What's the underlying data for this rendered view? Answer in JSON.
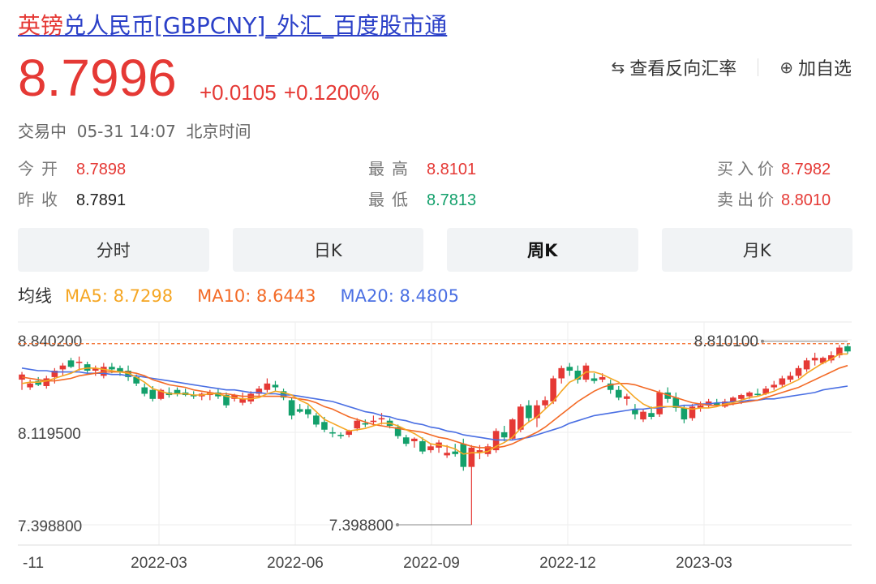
{
  "header": {
    "title_highlight": "英镑",
    "title_rest": "兑人民币[GBPCNY]_外汇_百度股市通",
    "price": "8.7996",
    "change": "+0.0105 +0.1200%",
    "reverse_label": "查看反向汇率",
    "add_label": "加自选",
    "status": "交易中  05-31 14:07  北京时间"
  },
  "quotes": {
    "open_label": "今开",
    "open_value": "8.7898",
    "prev_label": "昨收",
    "prev_value": "8.7891",
    "high_label": "最高",
    "high_value": "8.8101",
    "low_label": "最低",
    "low_value": "8.7813",
    "bid_label": "买入价",
    "bid_value": "8.7982",
    "ask_label": "卖出价",
    "ask_value": "8.8010"
  },
  "tabs": [
    "分时",
    "日K",
    "周K",
    "月K"
  ],
  "active_tab": "周K",
  "ma": {
    "label": "均线",
    "ma5": "MA5: 8.7298",
    "ma10": "MA10: 8.6443",
    "ma20": "MA20: 8.4805"
  },
  "colors": {
    "up": "#e53935",
    "down": "#13a06b",
    "ma5": "#f5a623",
    "ma10": "#f36a26",
    "ma20": "#4a6fe3",
    "link": "#2b40c8"
  },
  "icons": {
    "reverse": "swap-arrows-icon",
    "add": "circled-plus-icon"
  },
  "chart_data": {
    "type": "candlestick",
    "y_ticks": [
      "8.840200",
      "8.119500",
      "7.398800"
    ],
    "x_ticks": [
      "-11",
      "2022-03",
      "2022-06",
      "2022-09",
      "2022-12",
      "2023-03"
    ],
    "max_label": "8.810100",
    "min_label": "7.398800",
    "ylim": [
      7.3988,
      8.8402
    ],
    "max_value": 8.8101,
    "min_value": 7.3988,
    "candles": [
      [
        8.53,
        8.59,
        8.45,
        8.57
      ],
      [
        8.47,
        8.53,
        8.45,
        8.5
      ],
      [
        8.52,
        8.55,
        8.48,
        8.49
      ],
      [
        8.48,
        8.56,
        8.46,
        8.54
      ],
      [
        8.55,
        8.62,
        8.5,
        8.6
      ],
      [
        8.61,
        8.66,
        8.56,
        8.64
      ],
      [
        8.68,
        8.7,
        8.62,
        8.63
      ],
      [
        8.66,
        8.71,
        8.6,
        8.67
      ],
      [
        8.65,
        8.67,
        8.58,
        8.6
      ],
      [
        8.6,
        8.64,
        8.56,
        8.62
      ],
      [
        8.56,
        8.66,
        8.54,
        8.63
      ],
      [
        8.63,
        8.66,
        8.58,
        8.61
      ],
      [
        8.62,
        8.64,
        8.56,
        8.59
      ],
      [
        8.6,
        8.64,
        8.52,
        8.55
      ],
      [
        8.55,
        8.57,
        8.48,
        8.5
      ],
      [
        8.47,
        8.5,
        8.4,
        8.42
      ],
      [
        8.45,
        8.48,
        8.36,
        8.38
      ],
      [
        8.38,
        8.46,
        8.37,
        8.45
      ],
      [
        8.43,
        8.47,
        8.39,
        8.41
      ],
      [
        8.45,
        8.47,
        8.4,
        8.42
      ],
      [
        8.43,
        8.46,
        8.4,
        8.41
      ],
      [
        8.41,
        8.44,
        8.38,
        8.4
      ],
      [
        8.4,
        8.43,
        8.37,
        8.42
      ],
      [
        8.41,
        8.45,
        8.37,
        8.43
      ],
      [
        8.43,
        8.46,
        8.38,
        8.4
      ],
      [
        8.41,
        8.43,
        8.31,
        8.33
      ],
      [
        8.38,
        8.42,
        8.36,
        8.41
      ],
      [
        8.35,
        8.43,
        8.33,
        8.38
      ],
      [
        8.36,
        8.44,
        8.34,
        8.42
      ],
      [
        8.42,
        8.48,
        8.4,
        8.46
      ],
      [
        8.45,
        8.54,
        8.43,
        8.5
      ],
      [
        8.49,
        8.52,
        8.44,
        8.47
      ],
      [
        8.44,
        8.46,
        8.37,
        8.39
      ],
      [
        8.37,
        8.39,
        8.22,
        8.25
      ],
      [
        8.3,
        8.34,
        8.27,
        8.28
      ],
      [
        8.3,
        8.33,
        8.23,
        8.26
      ],
      [
        8.25,
        8.27,
        8.16,
        8.18
      ],
      [
        8.2,
        8.24,
        8.12,
        8.14
      ],
      [
        8.12,
        8.16,
        8.08,
        8.11
      ],
      [
        8.1,
        8.12,
        8.07,
        8.09
      ],
      [
        8.1,
        8.14,
        8.08,
        8.13
      ],
      [
        8.15,
        8.23,
        8.13,
        8.21
      ],
      [
        8.19,
        8.22,
        8.16,
        8.18
      ],
      [
        8.2,
        8.25,
        8.17,
        8.21
      ],
      [
        8.22,
        8.27,
        8.18,
        8.23
      ],
      [
        8.21,
        8.23,
        8.15,
        8.17
      ],
      [
        8.16,
        8.18,
        8.07,
        8.09
      ],
      [
        8.08,
        8.1,
        8.01,
        8.03
      ],
      [
        8.05,
        8.08,
        8.0,
        8.07
      ],
      [
        8.05,
        8.08,
        7.95,
        7.97
      ],
      [
        7.98,
        8.03,
        7.96,
        8.01
      ],
      [
        8.0,
        8.06,
        7.96,
        8.04
      ],
      [
        7.94,
        8.02,
        7.92,
        7.96
      ],
      [
        7.97,
        8.03,
        7.93,
        7.95
      ],
      [
        8.03,
        8.07,
        7.82,
        7.85
      ],
      [
        7.85,
        8.02,
        7.3988,
        8.0
      ],
      [
        7.96,
        8.02,
        7.91,
        7.98
      ],
      [
        7.95,
        8.03,
        7.93,
        8.01
      ],
      [
        7.98,
        8.15,
        7.96,
        8.13
      ],
      [
        8.12,
        8.17,
        8.05,
        8.08
      ],
      [
        8.07,
        8.23,
        8.06,
        8.22
      ],
      [
        8.14,
        8.34,
        8.12,
        8.32
      ],
      [
        8.33,
        8.37,
        8.2,
        8.23
      ],
      [
        8.23,
        8.37,
        8.16,
        8.33
      ],
      [
        8.33,
        8.4,
        8.3,
        8.37
      ],
      [
        8.36,
        8.56,
        8.34,
        8.54
      ],
      [
        8.54,
        8.64,
        8.5,
        8.62
      ],
      [
        8.63,
        8.66,
        8.56,
        8.6
      ],
      [
        8.6,
        8.64,
        8.5,
        8.53
      ],
      [
        8.53,
        8.66,
        8.51,
        8.64
      ],
      [
        8.54,
        8.58,
        8.5,
        8.52
      ],
      [
        8.53,
        8.58,
        8.51,
        8.55
      ],
      [
        8.5,
        8.53,
        8.42,
        8.45
      ],
      [
        8.45,
        8.48,
        8.37,
        8.39
      ],
      [
        8.38,
        8.42,
        8.33,
        8.4
      ],
      [
        8.3,
        8.34,
        8.22,
        8.26
      ],
      [
        8.22,
        8.3,
        8.2,
        8.28
      ],
      [
        8.27,
        8.32,
        8.22,
        8.24
      ],
      [
        8.26,
        8.45,
        8.24,
        8.43
      ],
      [
        8.43,
        8.47,
        8.35,
        8.38
      ],
      [
        8.39,
        8.43,
        8.28,
        8.31
      ],
      [
        8.31,
        8.33,
        8.19,
        8.22
      ],
      [
        8.23,
        8.34,
        8.21,
        8.32
      ],
      [
        8.31,
        8.36,
        8.28,
        8.33
      ],
      [
        8.33,
        8.38,
        8.31,
        8.36
      ],
      [
        8.35,
        8.38,
        8.32,
        8.33
      ],
      [
        8.32,
        8.38,
        8.31,
        8.36
      ],
      [
        8.36,
        8.4,
        8.33,
        8.39
      ],
      [
        8.38,
        8.42,
        8.34,
        8.41
      ],
      [
        8.4,
        8.44,
        8.38,
        8.43
      ],
      [
        8.42,
        8.46,
        8.4,
        8.41
      ],
      [
        8.42,
        8.48,
        8.41,
        8.46
      ],
      [
        8.47,
        8.52,
        8.45,
        8.49
      ],
      [
        8.49,
        8.56,
        8.47,
        8.54
      ],
      [
        8.53,
        8.59,
        8.51,
        8.56
      ],
      [
        8.56,
        8.64,
        8.54,
        8.62
      ],
      [
        8.61,
        8.7,
        8.59,
        8.68
      ],
      [
        8.68,
        8.74,
        8.64,
        8.7
      ],
      [
        8.66,
        8.71,
        8.65,
        8.7
      ],
      [
        8.68,
        8.75,
        8.66,
        8.72
      ],
      [
        8.72,
        8.8,
        8.7,
        8.78
      ],
      [
        8.79,
        8.8101,
        8.73,
        8.75
      ]
    ],
    "ma5": [
      8.5,
      8.51,
      8.51,
      8.52,
      8.54,
      8.56,
      8.58,
      8.61,
      8.62,
      8.62,
      8.61,
      8.6,
      8.59,
      8.58,
      8.55,
      8.51,
      8.46,
      8.44,
      8.42,
      8.42,
      8.42,
      8.41,
      8.41,
      8.42,
      8.42,
      8.4,
      8.39,
      8.38,
      8.38,
      8.39,
      8.42,
      8.44,
      8.43,
      8.41,
      8.37,
      8.34,
      8.28,
      8.22,
      8.19,
      8.16,
      8.13,
      8.14,
      8.15,
      8.17,
      8.19,
      8.19,
      8.17,
      8.14,
      8.11,
      8.07,
      8.03,
      8.02,
      8.01,
      7.99,
      7.95,
      7.96,
      7.96,
      7.97,
      8.01,
      8.04,
      8.08,
      8.15,
      8.2,
      8.24,
      8.3,
      8.36,
      8.44,
      8.51,
      8.54,
      8.59,
      8.59,
      8.57,
      8.54,
      8.51,
      8.45,
      8.39,
      8.34,
      8.31,
      8.32,
      8.32,
      8.32,
      8.31,
      8.3,
      8.31,
      8.31,
      8.32,
      8.34,
      8.35,
      8.37,
      8.39,
      8.4,
      8.42,
      8.44,
      8.47,
      8.5,
      8.53,
      8.58,
      8.62,
      8.66,
      8.69,
      8.73,
      8.73
    ],
    "ma10": [
      8.55,
      8.54,
      8.53,
      8.52,
      8.52,
      8.53,
      8.54,
      8.56,
      8.57,
      8.58,
      8.59,
      8.59,
      8.59,
      8.59,
      8.58,
      8.56,
      8.53,
      8.51,
      8.49,
      8.48,
      8.47,
      8.45,
      8.44,
      8.43,
      8.42,
      8.42,
      8.41,
      8.4,
      8.4,
      8.4,
      8.4,
      8.4,
      8.4,
      8.39,
      8.38,
      8.37,
      8.35,
      8.32,
      8.3,
      8.27,
      8.24,
      8.22,
      8.2,
      8.18,
      8.17,
      8.16,
      8.15,
      8.14,
      8.13,
      8.12,
      8.1,
      8.08,
      8.07,
      8.05,
      8.03,
      8.01,
      8.0,
      8.0,
      8.0,
      8.01,
      8.03,
      8.06,
      8.09,
      8.12,
      8.16,
      8.21,
      8.26,
      8.31,
      8.36,
      8.4,
      8.44,
      8.47,
      8.49,
      8.5,
      8.5,
      8.49,
      8.47,
      8.45,
      8.43,
      8.41,
      8.39,
      8.37,
      8.35,
      8.34,
      8.33,
      8.33,
      8.33,
      8.34,
      8.35,
      8.36,
      8.37,
      8.39,
      8.41,
      8.43,
      8.45,
      8.47,
      8.5,
      8.53,
      8.56,
      8.59,
      8.62,
      8.64
    ],
    "ma20": [
      8.62,
      8.61,
      8.6,
      8.6,
      8.59,
      8.59,
      8.59,
      8.59,
      8.58,
      8.58,
      8.58,
      8.57,
      8.57,
      8.56,
      8.56,
      8.55,
      8.54,
      8.53,
      8.52,
      8.51,
      8.5,
      8.49,
      8.48,
      8.47,
      8.46,
      8.45,
      8.45,
      8.44,
      8.43,
      8.43,
      8.42,
      8.42,
      8.41,
      8.41,
      8.4,
      8.39,
      8.38,
      8.37,
      8.36,
      8.34,
      8.32,
      8.3,
      8.28,
      8.27,
      8.25,
      8.24,
      8.22,
      8.21,
      8.19,
      8.18,
      8.16,
      8.15,
      8.13,
      8.12,
      8.1,
      8.09,
      8.08,
      8.07,
      8.06,
      8.06,
      8.06,
      8.07,
      8.08,
      8.1,
      8.12,
      8.14,
      8.16,
      8.19,
      8.21,
      8.23,
      8.25,
      8.26,
      8.27,
      8.28,
      8.29,
      8.3,
      8.3,
      8.31,
      8.31,
      8.32,
      8.32,
      8.33,
      8.33,
      8.34,
      8.34,
      8.35,
      8.35,
      8.36,
      8.36,
      8.37,
      8.37,
      8.38,
      8.38,
      8.39,
      8.4,
      8.41,
      8.42,
      8.43,
      8.45,
      8.46,
      8.47,
      8.48
    ]
  }
}
